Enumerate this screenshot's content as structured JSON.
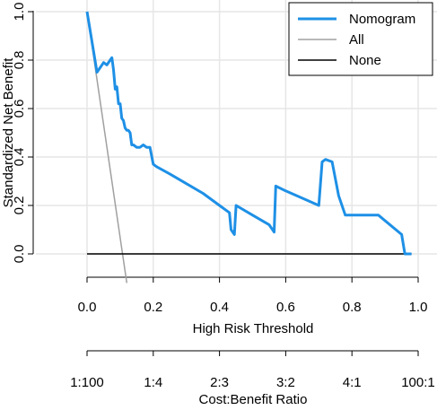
{
  "chart_data": {
    "type": "line",
    "xlabel": "High Risk Threshold",
    "ylabel": "Standardized Net Benefit",
    "xlim": [
      0,
      1
    ],
    "ylim": [
      0,
      1
    ],
    "x_ticks": [
      0.0,
      0.2,
      0.4,
      0.6,
      0.8,
      1.0
    ],
    "y_ticks": [
      0.0,
      0.2,
      0.4,
      0.6,
      0.8,
      1.0
    ],
    "x_tick_labels": [
      "0.0",
      "0.2",
      "0.4",
      "0.6",
      "0.8",
      "1.0"
    ],
    "y_tick_labels": [
      "0.0",
      "0.2",
      "0.4",
      "0.6",
      "0.8",
      "1.0"
    ],
    "grid": true,
    "legend_position": "top-right",
    "secondary_axis": {
      "label": "Cost:Benefit Ratio",
      "tick_labels": [
        "1:100",
        "1:4",
        "2:3",
        "3:2",
        "4:1",
        "100:1"
      ]
    },
    "series": [
      {
        "name": "Nomogram",
        "color": "#1e90e6",
        "x": [
          0.0,
          0.03,
          0.05,
          0.06,
          0.07,
          0.075,
          0.08,
          0.085,
          0.09,
          0.095,
          0.1,
          0.105,
          0.11,
          0.115,
          0.12,
          0.125,
          0.13,
          0.135,
          0.14,
          0.15,
          0.16,
          0.17,
          0.18,
          0.19,
          0.2,
          0.21,
          0.25,
          0.3,
          0.35,
          0.4,
          0.43,
          0.435,
          0.445,
          0.45,
          0.5,
          0.55,
          0.565,
          0.57,
          0.6,
          0.65,
          0.7,
          0.71,
          0.72,
          0.74,
          0.76,
          0.78,
          0.85,
          0.88,
          0.95,
          0.96,
          0.98
        ],
        "y": [
          1.0,
          0.75,
          0.79,
          0.78,
          0.8,
          0.81,
          0.76,
          0.68,
          0.69,
          0.62,
          0.62,
          0.56,
          0.55,
          0.52,
          0.51,
          0.51,
          0.5,
          0.45,
          0.45,
          0.44,
          0.44,
          0.45,
          0.44,
          0.44,
          0.37,
          0.36,
          0.33,
          0.29,
          0.25,
          0.2,
          0.17,
          0.1,
          0.08,
          0.2,
          0.16,
          0.12,
          0.09,
          0.28,
          0.26,
          0.23,
          0.2,
          0.38,
          0.39,
          0.38,
          0.24,
          0.16,
          0.16,
          0.16,
          0.08,
          0.0,
          0.0
        ]
      },
      {
        "name": "All",
        "color": "#a0a0a0",
        "x": [
          0.0,
          0.12
        ],
        "y": [
          1.0,
          -0.12
        ]
      },
      {
        "name": "None",
        "color": "#000000",
        "x": [
          0.0,
          0.98
        ],
        "y": [
          0.0,
          0.0
        ]
      }
    ]
  }
}
